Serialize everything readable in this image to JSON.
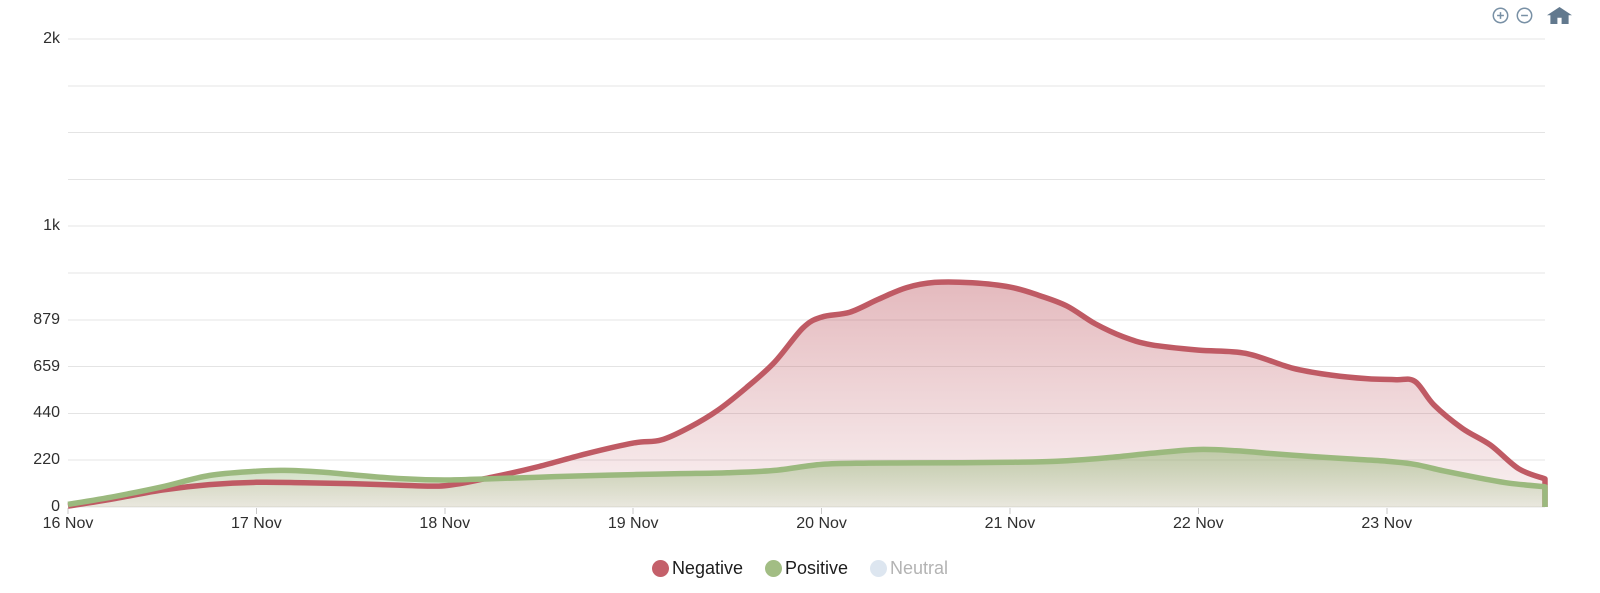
{
  "toolbar": {
    "icons": [
      "zoom-in",
      "zoom-out",
      "home"
    ]
  },
  "chart_data": {
    "type": "area",
    "x_axis": {
      "tick_labels": [
        "16 Nov",
        "17 Nov",
        "18 Nov",
        "19 Nov",
        "20 Nov",
        "21 Nov",
        "22 Nov",
        "23 Nov"
      ],
      "tick_positions_days": [
        0,
        1,
        2,
        3,
        4,
        5,
        6,
        7
      ],
      "range_days": [
        0,
        7.84
      ]
    },
    "y_axis": {
      "min": 0,
      "max": 2198,
      "tick_values": [
        0,
        220,
        440,
        659,
        879,
        1099,
        1319,
        1538,
        1758,
        1978,
        2198
      ],
      "tick_labels": [
        "0",
        "220",
        "440",
        "659",
        "879",
        "",
        "1k",
        "",
        "",
        "",
        "2k"
      ],
      "grid": true
    },
    "series": [
      {
        "name": "Negative",
        "color": "#bf5a64",
        "fill_top": "rgba(191,90,100,0.42)",
        "fill_bottom": "rgba(191,90,100,0.08)",
        "points": [
          [
            0,
            4
          ],
          [
            0.25,
            40
          ],
          [
            0.5,
            80
          ],
          [
            0.75,
            105
          ],
          [
            1,
            116
          ],
          [
            1.25,
            114
          ],
          [
            1.5,
            110
          ],
          [
            1.75,
            103
          ],
          [
            2,
            100
          ],
          [
            2.25,
            140
          ],
          [
            2.5,
            190
          ],
          [
            2.75,
            250
          ],
          [
            3,
            300
          ],
          [
            3.15,
            315
          ],
          [
            3.3,
            375
          ],
          [
            3.45,
            455
          ],
          [
            3.6,
            560
          ],
          [
            3.75,
            680
          ],
          [
            3.9,
            840
          ],
          [
            4,
            892
          ],
          [
            4.15,
            915
          ],
          [
            4.3,
            975
          ],
          [
            4.45,
            1030
          ],
          [
            4.6,
            1055
          ],
          [
            4.8,
            1053
          ],
          [
            5,
            1033
          ],
          [
            5.15,
            995
          ],
          [
            5.3,
            945
          ],
          [
            5.45,
            862
          ],
          [
            5.6,
            800
          ],
          [
            5.75,
            762
          ],
          [
            6,
            737
          ],
          [
            6.25,
            722
          ],
          [
            6.5,
            652
          ],
          [
            6.7,
            620
          ],
          [
            6.9,
            602
          ],
          [
            7.05,
            598
          ],
          [
            7.15,
            590
          ],
          [
            7.25,
            480
          ],
          [
            7.4,
            370
          ],
          [
            7.55,
            291
          ],
          [
            7.7,
            180
          ],
          [
            7.84,
            132
          ]
        ]
      },
      {
        "name": "Positive",
        "color": "#9bb97e",
        "fill_top": "rgba(155,185,126,0.60)",
        "fill_bottom": "rgba(155,185,126,0.15)",
        "points": [
          [
            0,
            12
          ],
          [
            0.25,
            50
          ],
          [
            0.5,
            95
          ],
          [
            0.75,
            148
          ],
          [
            1,
            168
          ],
          [
            1.15,
            172
          ],
          [
            1.35,
            164
          ],
          [
            1.5,
            152
          ],
          [
            1.75,
            134
          ],
          [
            2,
            127
          ],
          [
            2.25,
            133
          ],
          [
            2.5,
            140
          ],
          [
            2.75,
            147
          ],
          [
            3,
            152
          ],
          [
            3.25,
            157
          ],
          [
            3.5,
            161
          ],
          [
            3.75,
            172
          ],
          [
            4,
            200
          ],
          [
            4.25,
            206
          ],
          [
            4.5,
            207
          ],
          [
            4.75,
            208
          ],
          [
            5,
            210
          ],
          [
            5.25,
            215
          ],
          [
            5.5,
            230
          ],
          [
            5.75,
            252
          ],
          [
            6,
            270
          ],
          [
            6.2,
            264
          ],
          [
            6.4,
            250
          ],
          [
            6.6,
            237
          ],
          [
            6.8,
            226
          ],
          [
            7,
            215
          ],
          [
            7.15,
            200
          ],
          [
            7.3,
            170
          ],
          [
            7.5,
            135
          ],
          [
            7.65,
            112
          ],
          [
            7.84,
            95
          ]
        ]
      }
    ],
    "legend": [
      {
        "label": "Negative",
        "color": "#c4606a",
        "active": true
      },
      {
        "label": "Positive",
        "color": "#a2bd84",
        "active": true
      },
      {
        "label": "Neutral",
        "color": "#dde6f0",
        "active": false
      }
    ]
  }
}
